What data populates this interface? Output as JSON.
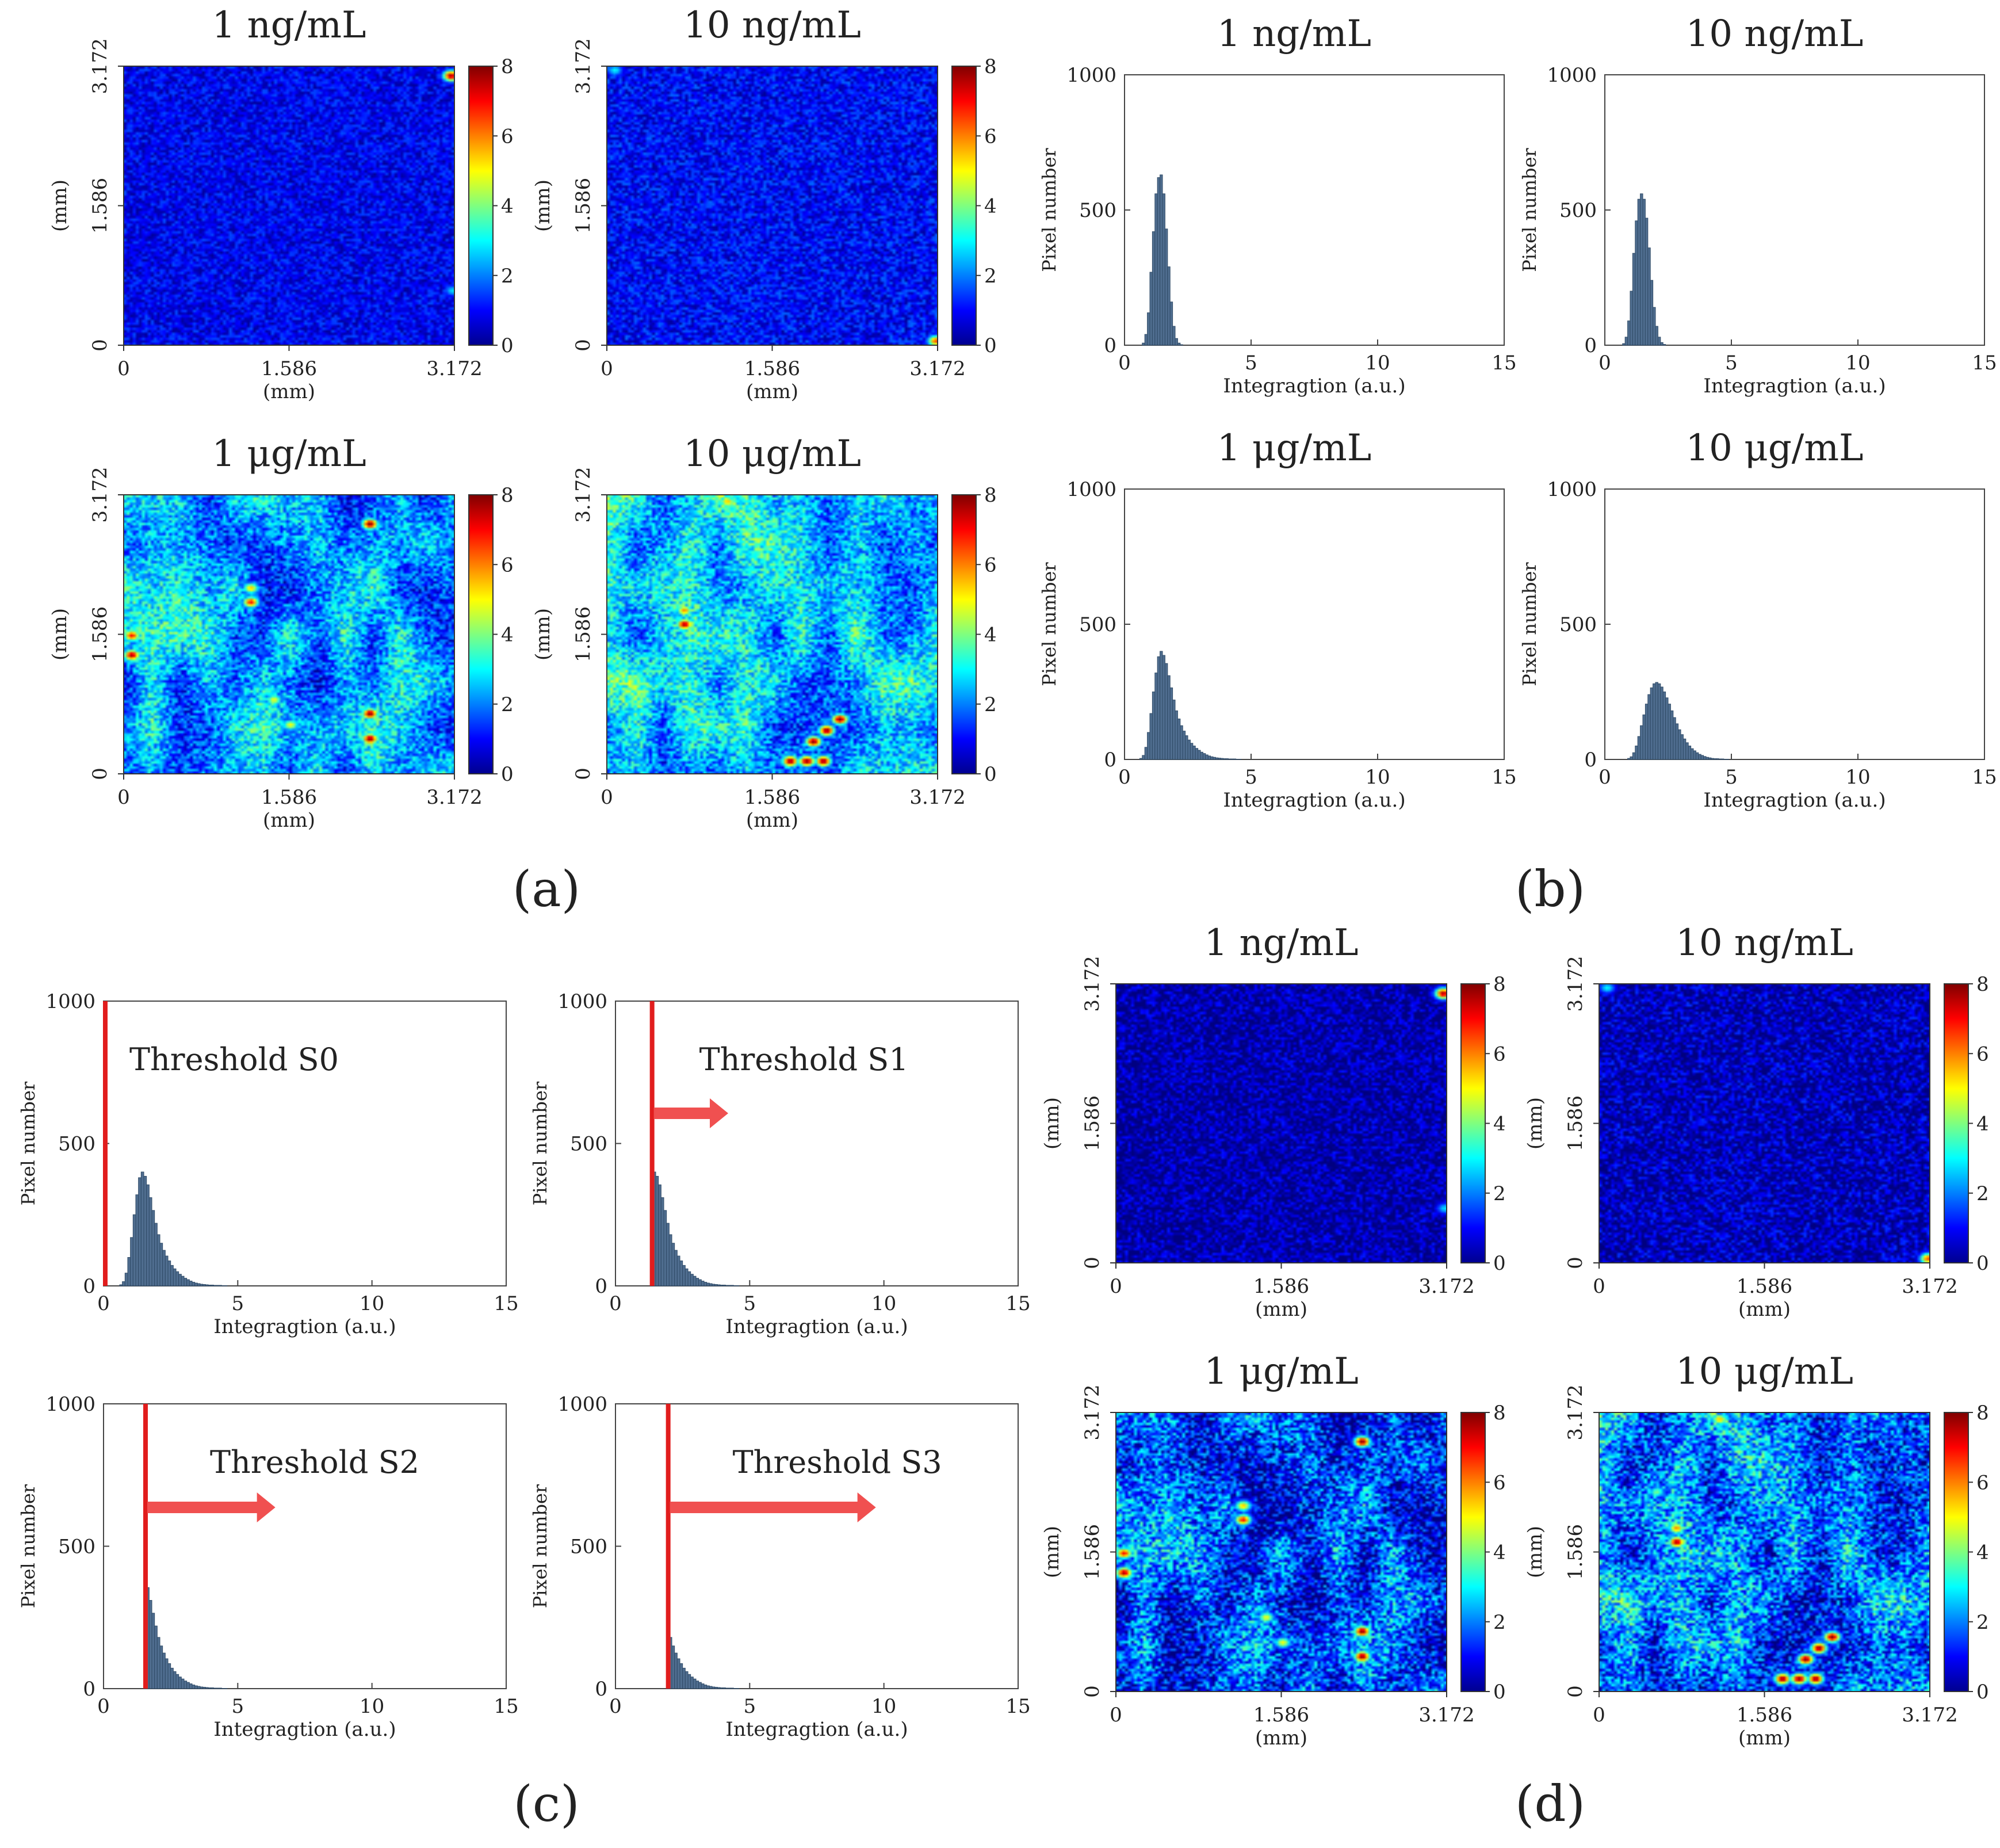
{
  "figure": {
    "panel_labels": {
      "a": "(a)",
      "b": "(b)",
      "c": "(c)",
      "d": "(d)"
    }
  },
  "colors": {
    "bar": "#4f6d8f",
    "bar_edge": "#2f4a66",
    "threshold": "#e11d1d",
    "arrow": "#f05050",
    "colormap": "jet"
  },
  "chart_data": [
    {
      "id": "a",
      "type": "heatmap",
      "grid": false,
      "colorbar": {
        "min": 0,
        "max": 8,
        "ticks": [
          "0",
          "2",
          "4",
          "6",
          "8"
        ]
      },
      "xticks": [
        "0",
        "1.586",
        "3.172"
      ],
      "yticks": [
        "0",
        "1.586",
        "3.172"
      ],
      "xlabel": "(mm)",
      "ylabel": "(mm)",
      "maps": [
        {
          "title": "1 ng/mL",
          "base_level": 0.9,
          "noise": 0.7,
          "rough": 0,
          "hotspots": [
            [
              0.985,
              0.03,
              7.8
            ],
            [
              0.99,
              0.8,
              2.8
            ]
          ]
        },
        {
          "title": "10 ng/mL",
          "base_level": 1.0,
          "noise": 0.8,
          "rough": 0,
          "hotspots": [
            [
              0.02,
              0.01,
              3.0
            ],
            [
              0.99,
              0.98,
              6.5
            ]
          ]
        },
        {
          "title": "1 μg/mL",
          "base_level": 2.2,
          "noise": 1.1,
          "rough": 1,
          "hotspots": [
            [
              0.74,
              0.1,
              8.0
            ],
            [
              0.38,
              0.33,
              5.5
            ],
            [
              0.38,
              0.38,
              7.0
            ],
            [
              0.02,
              0.5,
              7.0
            ],
            [
              0.02,
              0.57,
              7.8
            ],
            [
              0.45,
              0.73,
              5.0
            ],
            [
              0.5,
              0.82,
              5.0
            ],
            [
              0.74,
              0.78,
              8.0
            ],
            [
              0.74,
              0.87,
              8.0
            ]
          ]
        },
        {
          "title": "10 μg/mL",
          "base_level": 2.6,
          "noise": 1.1,
          "rough": 1,
          "hotspots": [
            [
              0.36,
              0.02,
              5.5
            ],
            [
              0.17,
              0.28,
              4.0
            ],
            [
              0.23,
              0.41,
              6.0
            ],
            [
              0.23,
              0.46,
              7.8
            ],
            [
              0.55,
              0.95,
              8.0
            ],
            [
              0.6,
              0.95,
              8.0
            ],
            [
              0.65,
              0.95,
              8.0
            ],
            [
              0.62,
              0.88,
              8.0
            ],
            [
              0.66,
              0.84,
              8.0
            ],
            [
              0.7,
              0.8,
              8.0
            ]
          ]
        }
      ]
    },
    {
      "id": "b",
      "type": "bar",
      "grid": false,
      "xlim": [
        0,
        15
      ],
      "ylim": [
        0,
        1000
      ],
      "xticks": [
        "0",
        "5",
        "10",
        "15"
      ],
      "yticks": [
        "0",
        "500",
        "1000"
      ],
      "xlabel": "Integragtion  (a.u.)",
      "ylabel": "Pixel number",
      "series": [
        {
          "name": "1 ng/mL",
          "bin_start": 0.7,
          "bin_width": 0.1,
          "values": [
            8,
            40,
            120,
            270,
            420,
            560,
            620,
            630,
            560,
            430,
            290,
            160,
            70,
            25,
            8,
            2
          ]
        },
        {
          "name": "10 ng/mL",
          "bin_start": 0.7,
          "bin_width": 0.1,
          "values": [
            6,
            30,
            90,
            200,
            340,
            460,
            540,
            560,
            540,
            470,
            360,
            240,
            140,
            70,
            30,
            10,
            3
          ]
        },
        {
          "name": "1 μg/mL",
          "bin_start": 0.6,
          "bin_width": 0.1,
          "values": [
            4,
            15,
            45,
            100,
            170,
            250,
            320,
            380,
            400,
            385,
            355,
            310,
            265,
            220,
            180,
            150,
            125,
            105,
            88,
            72,
            60,
            50,
            41,
            34,
            27,
            22,
            17,
            13,
            10,
            8,
            6,
            5,
            4,
            3,
            3,
            2,
            2,
            2,
            1,
            1
          ]
        },
        {
          "name": "10 μg/mL",
          "bin_start": 0.9,
          "bin_width": 0.1,
          "values": [
            4,
            10,
            25,
            50,
            85,
            125,
            165,
            205,
            240,
            265,
            280,
            285,
            280,
            268,
            250,
            228,
            205,
            180,
            155,
            132,
            110,
            92,
            76,
            62,
            50,
            40,
            32,
            25,
            19,
            15,
            11,
            8,
            6,
            4,
            3,
            3,
            2,
            2,
            1,
            1
          ]
        }
      ]
    },
    {
      "id": "c",
      "type": "bar",
      "grid": false,
      "xlim": [
        0,
        15
      ],
      "ylim": [
        0,
        1000
      ],
      "xticks": [
        "0",
        "5",
        "10",
        "15"
      ],
      "yticks": [
        "0",
        "500",
        "1000"
      ],
      "xlabel": "Integragtion  (a.u.)",
      "ylabel": "Pixel number",
      "base_distribution": {
        "bin_start": 0.6,
        "bin_width": 0.1,
        "values": [
          4,
          15,
          45,
          100,
          170,
          250,
          320,
          380,
          400,
          385,
          355,
          310,
          265,
          220,
          180,
          150,
          125,
          105,
          88,
          72,
          60,
          50,
          41,
          34,
          27,
          22,
          17,
          13,
          10,
          8,
          6,
          5,
          4,
          3,
          3,
          2,
          2,
          2,
          1,
          1
        ]
      },
      "panels": [
        {
          "annotation": "Threshold S0",
          "threshold": 0.0,
          "arrow_end": null
        },
        {
          "annotation": "Threshold S1",
          "threshold": 1.3,
          "arrow_end": 4.2
        },
        {
          "annotation": "Threshold S2",
          "threshold": 1.5,
          "arrow_end": 6.4
        },
        {
          "annotation": "Threshold S3",
          "threshold": 1.9,
          "arrow_end": 9.7
        }
      ]
    },
    {
      "id": "d",
      "type": "heatmap",
      "grid": false,
      "colorbar": {
        "min": 0,
        "max": 8,
        "ticks": [
          "0",
          "2",
          "4",
          "6",
          "8"
        ]
      },
      "xticks": [
        "0",
        "1.586",
        "3.172"
      ],
      "yticks": [
        "0",
        "1.586",
        "3.172"
      ],
      "xlabel": "(mm)",
      "ylabel": "(mm)",
      "maps": [
        {
          "title": "1 ng/mL",
          "base_level": 0.3,
          "noise": 0.9,
          "rough": 0,
          "hotspots": [
            [
              0.985,
              0.03,
              7.8
            ],
            [
              0.99,
              0.8,
              2.8
            ]
          ]
        },
        {
          "title": "10 ng/mL",
          "base_level": 0.4,
          "noise": 1.0,
          "rough": 0,
          "hotspots": [
            [
              0.02,
              0.01,
              3.0
            ],
            [
              0.99,
              0.98,
              6.5
            ]
          ]
        },
        {
          "title": "1 μg/mL",
          "base_level": 1.4,
          "noise": 1.5,
          "rough": 1,
          "hotspots": [
            [
              0.74,
              0.1,
              8.0
            ],
            [
              0.38,
              0.33,
              5.5
            ],
            [
              0.38,
              0.38,
              7.0
            ],
            [
              0.02,
              0.5,
              7.0
            ],
            [
              0.02,
              0.57,
              7.8
            ],
            [
              0.45,
              0.73,
              5.0
            ],
            [
              0.5,
              0.82,
              5.0
            ],
            [
              0.74,
              0.78,
              8.0
            ],
            [
              0.74,
              0.87,
              8.0
            ]
          ]
        },
        {
          "title": "10 μg/mL",
          "base_level": 1.9,
          "noise": 1.5,
          "rough": 1,
          "hotspots": [
            [
              0.36,
              0.02,
              5.5
            ],
            [
              0.17,
              0.28,
              4.0
            ],
            [
              0.23,
              0.41,
              6.0
            ],
            [
              0.23,
              0.46,
              7.8
            ],
            [
              0.55,
              0.95,
              8.0
            ],
            [
              0.6,
              0.95,
              8.0
            ],
            [
              0.65,
              0.95,
              8.0
            ],
            [
              0.62,
              0.88,
              8.0
            ],
            [
              0.66,
              0.84,
              8.0
            ],
            [
              0.7,
              0.8,
              8.0
            ]
          ]
        }
      ]
    }
  ]
}
